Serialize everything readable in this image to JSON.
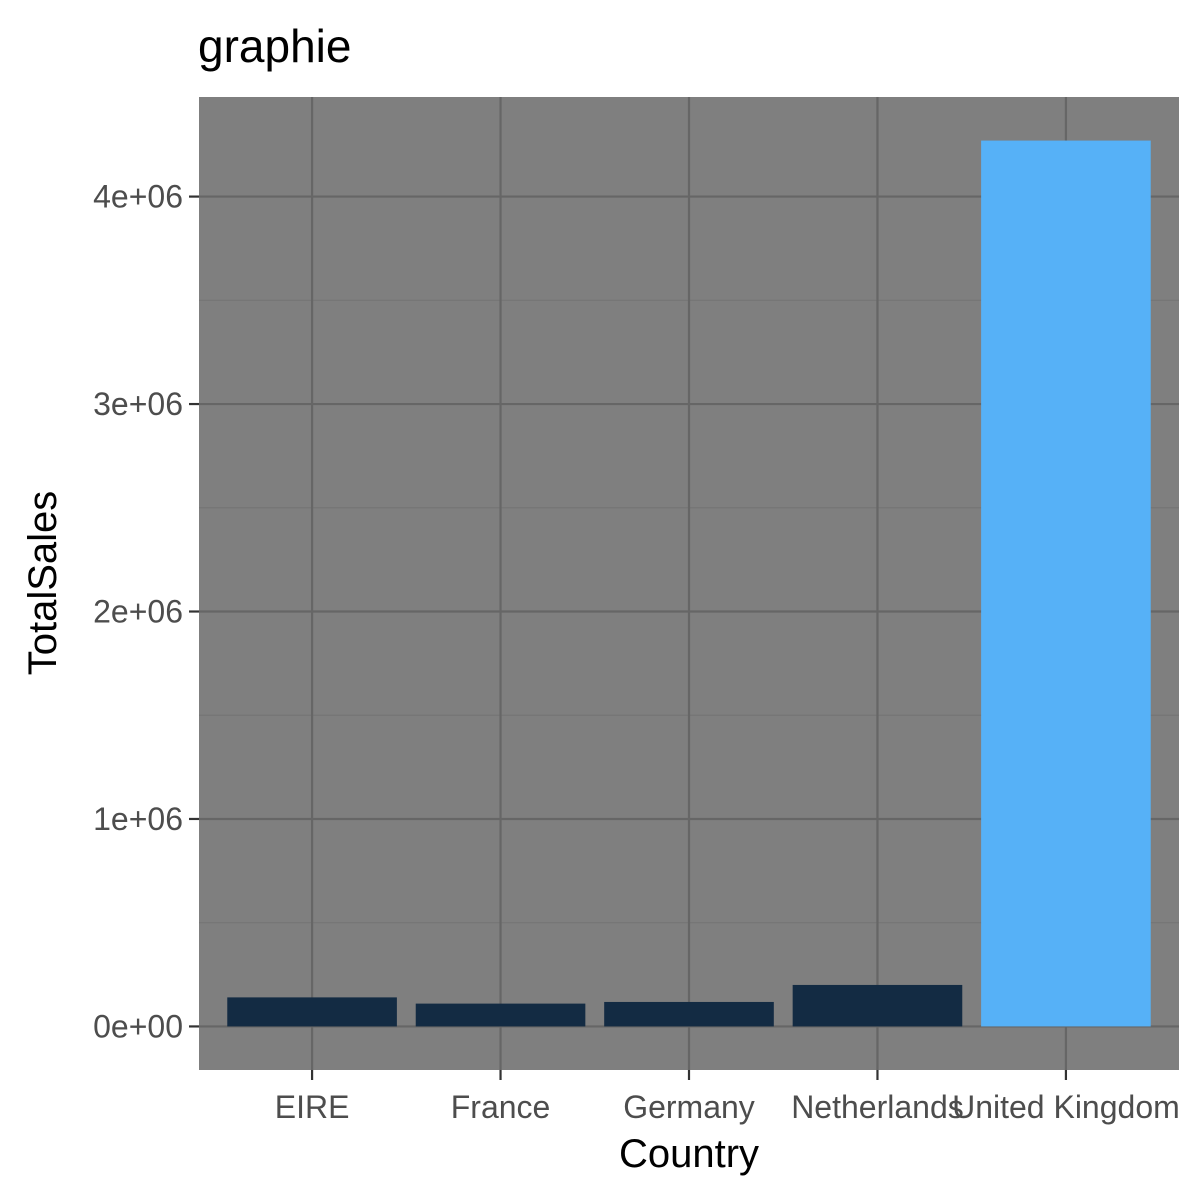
{
  "chart_data": {
    "type": "bar",
    "title": "graphie",
    "xlabel": "Country",
    "ylabel": "TotalSales",
    "categories": [
      "EIRE",
      "France",
      "Germany",
      "Netherlands",
      "United Kingdom"
    ],
    "values": [
      140000,
      110000,
      118000,
      200000,
      4270000
    ],
    "ylim": [
      -210000,
      4480000
    ],
    "yticks": [
      {
        "value": 0,
        "label": "0e+00"
      },
      {
        "value": 1000000,
        "label": "1e+06"
      },
      {
        "value": 2000000,
        "label": "2e+06"
      },
      {
        "value": 3000000,
        "label": "3e+06"
      },
      {
        "value": 4000000,
        "label": "4e+06"
      }
    ],
    "grid": true,
    "legend": "none",
    "colors": {
      "panel": "#7f7f7f",
      "grid_major": "#666666",
      "grid_minor": "#747474",
      "bars": [
        "#132b43",
        "#132b43",
        "#132b43",
        "#132b43",
        "#56b1f7"
      ]
    }
  }
}
